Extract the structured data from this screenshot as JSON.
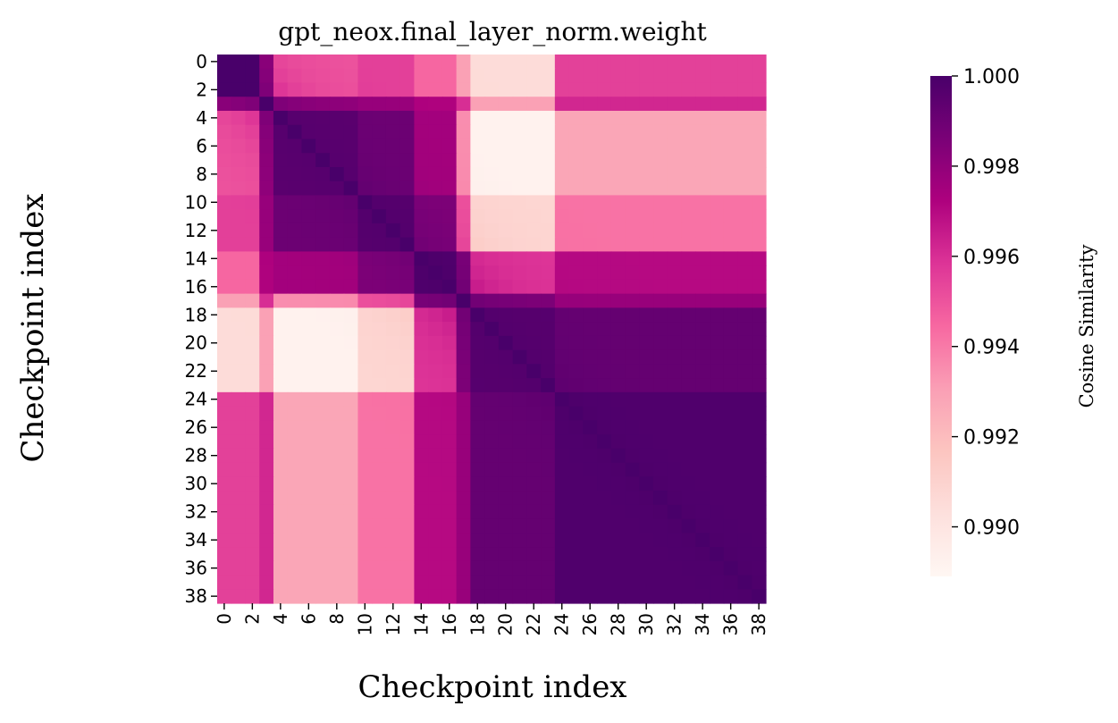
{
  "chart_data": {
    "type": "heatmap",
    "title": "gpt_neox.final_layer_norm.weight",
    "xlabel": "Checkpoint index",
    "ylabel": "Checkpoint index",
    "n": 39,
    "tick_labels": [
      "0",
      "2",
      "4",
      "6",
      "8",
      "10",
      "12",
      "14",
      "16",
      "18",
      "20",
      "22",
      "24",
      "26",
      "28",
      "30",
      "32",
      "34",
      "36",
      "38"
    ],
    "colorbar": {
      "label": "Cosine Similarity",
      "vmin": 0.9889,
      "vmax": 1.0,
      "ticks": [
        "1.000",
        "0.998",
        "0.996",
        "0.994",
        "0.992",
        "0.990"
      ],
      "tick_values": [
        1.0,
        0.998,
        0.996,
        0.994,
        0.992,
        0.99
      ],
      "colormap": "RdPu",
      "colormap_stops": [
        "#fff7f3",
        "#fde0dd",
        "#fcc5c0",
        "#fa9fb5",
        "#f768a1",
        "#dd3497",
        "#ae017e",
        "#7a0177",
        "#49006a"
      ]
    },
    "matrix_description": "symmetric cosine similarity between checkpoints",
    "block_values": {
      "blocks": [
        "0-2",
        "3",
        "4-9",
        "10-13",
        "14-16",
        "17",
        "18-23",
        "24-38"
      ],
      "matrix": [
        [
          1.0,
          0.998,
          0.995,
          0.9955,
          0.9945,
          0.993,
          0.9905,
          0.9955
        ],
        [
          0.998,
          1.0,
          0.998,
          0.9978,
          0.9972,
          0.996,
          0.993,
          0.9962
        ],
        [
          0.995,
          0.998,
          0.9995,
          0.999,
          0.9975,
          0.9935,
          0.9892,
          0.9928
        ],
        [
          0.9955,
          0.9978,
          0.999,
          0.9996,
          0.9985,
          0.995,
          0.9908,
          0.9942
        ],
        [
          0.9945,
          0.9972,
          0.9975,
          0.9985,
          0.9998,
          0.9985,
          0.9958,
          0.997
        ],
        [
          0.993,
          0.996,
          0.9935,
          0.995,
          0.9985,
          1.0,
          0.9985,
          0.9978
        ],
        [
          0.9905,
          0.993,
          0.9892,
          0.9908,
          0.9958,
          0.9985,
          0.9996,
          0.9992
        ],
        [
          0.9955,
          0.9962,
          0.9928,
          0.9942,
          0.997,
          0.9978,
          0.9992,
          0.9998
        ]
      ]
    }
  }
}
